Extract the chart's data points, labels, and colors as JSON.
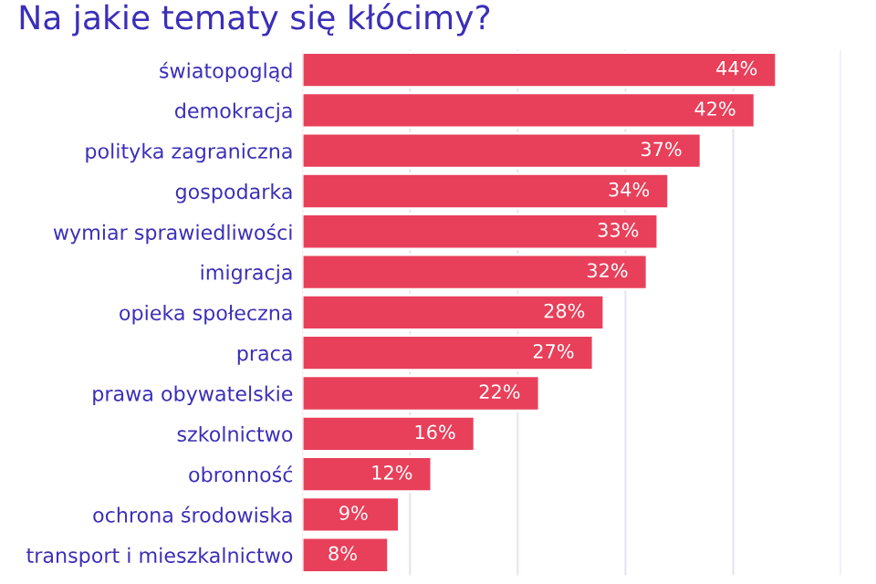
{
  "chart_data": {
    "type": "bar",
    "orientation": "horizontal",
    "title": "Na jakie tematy się kłócimy?",
    "categories": [
      "światopogląd",
      "demokracja",
      "polityka zagraniczna",
      "gospodarka",
      "wymiar sprawiedliwości",
      "imigracja",
      "opieka społeczna",
      "praca",
      "prawa obywatelskie",
      "szkolnictwo",
      "obronność",
      "ochrona środowiska",
      "transport i mieszkalnictwo"
    ],
    "values": [
      44,
      42,
      37,
      34,
      33,
      32,
      28,
      27,
      22,
      16,
      12,
      9,
      8
    ],
    "value_labels": [
      "44%",
      "42%",
      "37%",
      "34%",
      "33%",
      "32%",
      "28%",
      "27%",
      "22%",
      "16%",
      "12%",
      "9%",
      "8%"
    ],
    "color": "#e8405a",
    "xlim": [
      0,
      50
    ],
    "xticks": [
      {
        "value": 0,
        "label": null
      },
      {
        "value": 10,
        "label": null
      },
      {
        "value": 20,
        "label": null
      },
      {
        "value": 30,
        "label": null
      },
      {
        "value": 40,
        "label": null
      },
      {
        "value": 50,
        "label": null
      }
    ],
    "grid": "x",
    "tick_labels": "y",
    "legend": false
  }
}
